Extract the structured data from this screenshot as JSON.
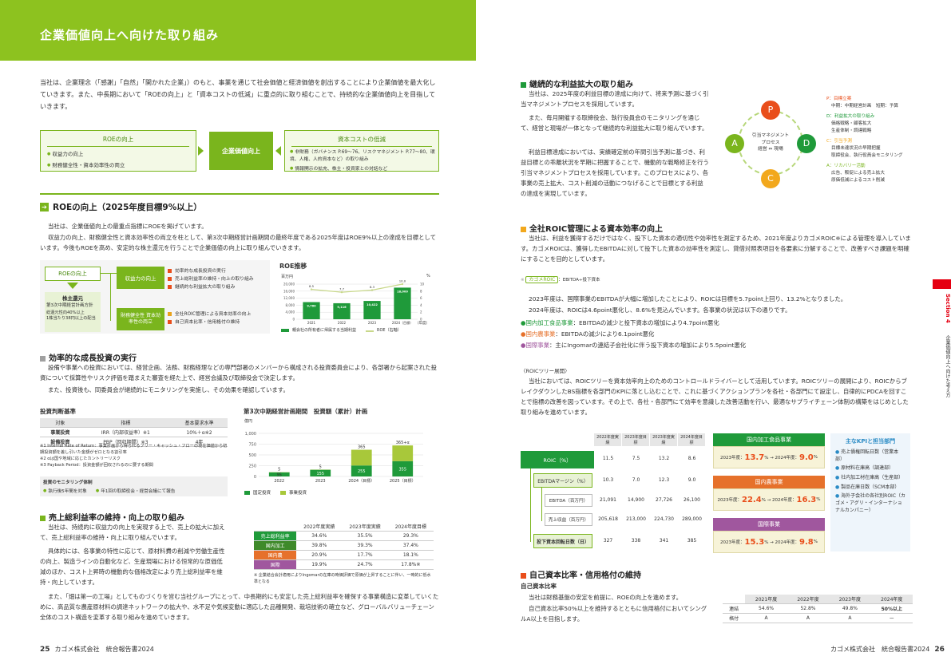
{
  "banner_title": "企業価値向上へ向けた取り組み",
  "intro": "当社は、企業理念（「感謝」「自然」「開かれた企業」）のもと、事業を通じて社会価値と経済価値を創出することにより企業価値を最大化していきます。また、中長期において「ROEの向上」と「資本コストの低減」に重点的に取り組むことで、持続的な企業価値向上を目指していきます。",
  "flow": {
    "roe_title": "ROEの向上",
    "roe_items": [
      "収益力の向上",
      "財務健全性・資本効率性の両立"
    ],
    "center": "企業価値向上",
    "cost_title": "資本コストの低減",
    "cost_items": [
      "非財務（ガバナンス P.69〜76、リスクマネジメント P.77〜80、環境、人権、人的資本など）の取り組み",
      "情報開示の拡充、株主・投資家との対話など"
    ]
  },
  "roe_section": {
    "title": "ROEの向上（2025年度目標9%以上）",
    "p1": "当社は、企業価値向上の最重点指標にROEを掲げています。",
    "p2": "収益力の向上、財務健全性と資本効率性の両立を柱として、第3次中期経営計画期間の最終年度である2025年度はROE9%以上の達成を目標としています。今後もROEを高め、安定的な株主還元を行うことで企業価値の向上に取り組んでいきます。"
  },
  "roe_tree": {
    "root": "ROEの向上",
    "b1": "収益力の向上",
    "b1_items": [
      "効率的な成長投資の実行",
      "売上総利益率の維持・向上の取り組み",
      "継続的な利益拡大の取り組み"
    ],
    "b2": "財務健全性 資本効率性の両立",
    "b2_items": [
      "全社ROIC管理による資本効率の向上",
      "自己資本比率・信用格付の維持"
    ],
    "ret_title": "株主還元",
    "ret_sub": "第3次中期経営計画方針",
    "ret_items": [
      "総還元性向40%以上",
      "1株当たり38円以上の配当"
    ]
  },
  "roe_chart": {
    "title": "ROE推移",
    "unit_left": "百万円",
    "unit_right": "%",
    "legend1": "親会社の所有者に帰属する当期利益",
    "legend2": "ROE（右軸）",
    "note": "（年度）"
  },
  "growth": {
    "title": "効率的な成長投資の実行",
    "p1": "設備や事業への投資においては、経営企画、法務、財務経理などの専門部署のメンバーから構成される投資委員会により、各部署から起案された投資について採算性やリスク評価を踏まえた審査を経た上で、経営会議及び取締役会で決定します。",
    "p2": "また、投資後も、同委員会が継続的にモニタリングを実施し、その効果を確認しています。"
  },
  "criteria": {
    "title": "投資判断基準",
    "headers": [
      "対象",
      "指標",
      "基本要求水準"
    ],
    "rows": [
      [
        "事業投資",
        "IRR（内部収益率）※1",
        "10%＋α※2"
      ],
      [
        "設備投資",
        "PBP（回収期間）※3",
        "4年"
      ]
    ],
    "notes": [
      "※1 Internal Rate of Return：事業計画から得られるフリー・キャッシュ・フローの現在価値から初期投資額を差し引いた金額がゼロとなる割引率",
      "※2 αは国や地域に応じたカントリーリスク",
      "※3 Payback Period：投資金額が回収されるのに要する期間"
    ],
    "monitor_title": "投資のモニタリング体制",
    "monitor_items": [
      "執行後5年間を対象",
      "年1回の取締役会・経営会議にて報告"
    ]
  },
  "inv_chart": {
    "title": "第3次中期経営計画期間　投資額（累計）計画",
    "unit": "億円",
    "legend1": "国定投資",
    "legend2": "事業投資"
  },
  "margin": {
    "title": "売上総利益率の維持・向上の取り組み",
    "p1": "当社は、持続的に収益力の向上を実現する上で、売上の拡大に加えて、売上総利益率の維持・向上に取り組んでいます。",
    "p2": "具体的には、各事業の特性に応じて、原材料費の削減や労働生産性の向上、製造ラインの自動化など、生産現場における恒常的な原価低減のほか、コスト上昇時の機動的な価格改定により売上総利益率を維持・向上しています。",
    "p3": "また、「畑は第一の工場」としてものづくりを営む当社グループにとって、中長期的にも安定した売上総利益率を確保する事業構造に変革していくために、高品質な農産原材料の調達ネットワークの拡大や、水不足や気候変動に適応した品種開発、栽培技術の確立など、グローバルバリューチェーン全体のコスト構造を変革する取り組みを進めていきます。",
    "headers": [
      "",
      "2022年度実績",
      "2023年度実績",
      "2024年度目標"
    ],
    "rows": [
      [
        "売上総利益率",
        "34.6%",
        "35.5%",
        "29.3%"
      ],
      [
        "国内加工",
        "39.8%",
        "39.3%",
        "37.4%"
      ],
      [
        "国内農",
        "20.9%",
        "17.7%",
        "18.1%"
      ],
      [
        "国際",
        "19.9%",
        "24.7%",
        "17.8%※"
      ]
    ],
    "note": "※ 企業結合会計適用によりIngomarの在庫の時価評価で原価が上昇することに伴い、一時的に低水準となる"
  },
  "footer_left": {
    "page": "25",
    "text": "カゴメ株式会社　統合報告書2024"
  },
  "footer_right": {
    "page": "26",
    "text": "カゴメ株式会社　統合報告書2024"
  },
  "profit": {
    "title": "継続的な利益拡大の取り組み",
    "p1": "当社は、2025年度の利益目標の達成に向けて、将来予測に基づく引当マネジメントプロセスを採用しています。",
    "p2": "また、毎月開催する取締役会、執行役員会のモニタリングを通じて、経営と現場が一体となって継続的な利益拡大に取り組んでいます。",
    "p3": "利益目標達成においては、実績確定前の年間引当予測に基づき、利益目標との乖離状況を早期に把握することで、機動的な戦略修正を行う引当マネジメントプロセスを採用しています。このプロセスにより、各事業の売上拡大、コスト削減の活動につなげることで目標とする利益の達成を実現しています。"
  },
  "pdca": {
    "center1": "引当マネジメント",
    "center2": "プロセス",
    "center3": "経営 ⇔ 現場",
    "P": "P",
    "D": "D",
    "C": "C",
    "A": "A",
    "p_title": "P：目標立案",
    "p_sub": "中期：中期経営計画　短期：予算",
    "d_title": "D：利益拡大の取り組み",
    "d_subs": [
      "価格戦略・顧客拡大",
      "生産体制・調達戦略"
    ],
    "c_title": "C：引当予測",
    "c_subs": [
      "目標未達状況の早期把握",
      "取締役会、執行役員会モニタリング"
    ],
    "a_title": "A：リカバリー活動",
    "a_subs": [
      "広告、販促による売上拡大",
      "原価低減によるコスト削減"
    ]
  },
  "roic": {
    "title": "全社ROIC管理による資本効率の向上",
    "p1": "当社は、利益を獲得するだけではなく、投下した資本の適切性や効率性を測定するため、2021年度よりカゴメROIC※による管理を導入しています。カゴメROICは、獲得したEBITDAに対して投下した資本の効率性を測定し、貸借対照表項目を各要素に分解することで、改善すべき課題を明確にすることを目的としています。",
    "formula_pill": "カゴメROIC",
    "formula": "：EBITDA÷投下資本",
    "p2": "2023年度は、国際事業のEBITDAが大幅に増加したことにより、ROICは目標を5.7point上回り、13.2%となりました。",
    "p3": "2024年度は、ROICは4.6point悪化し、8.6%を見込んでいます。各事業の状況は以下の通りです。",
    "seg1_name": "国内加工食品事業",
    "seg1": "：EBITDAの減少と投下資本の増加により4.7point悪化",
    "seg2_name": "国内農事業",
    "seg2": "：EBITDAの減少により6.1point悪化",
    "seg3_name": "国際事業",
    "seg3": "：主にIngomarの連結子会社化に伴う投下資本の増加により5.5point悪化",
    "tree_title": "〈ROICツリー展開〉",
    "p4": "当社においては、ROICツリーを資本効率向上のためのコントロールドライバーとして活用しています。ROICツリーの展開により、ROICからブレイクダウンしたBS指標を各部門のKPIに落とし込むことで、これに基づくアクションプランを各社・各部門にて設定し、自律的にPDCAを回すことで指標の改善を図っています。その上で、各社・各部門にて効率を意識した改善活動を行い、最適なサプライチェーン体制の構築をはじめとした取り組みを進めています。"
  },
  "roic_table": {
    "headers": [
      "2022年度実績",
      "2023年度目標",
      "2023年度実績",
      "2024年度目標"
    ],
    "rows": [
      {
        "label": "ROIC（%）",
        "v": [
          "11.5",
          "7.5",
          "13.2",
          "8.6"
        ]
      },
      {
        "label": "EBITDAマージン（%）",
        "v": [
          "10.3",
          "7.0",
          "12.3",
          "9.0"
        ]
      },
      {
        "label": "EBITDA（百万円）",
        "v": [
          "21,091",
          "14,900",
          "27,726",
          "26,100"
        ]
      },
      {
        "label": "売上収益（百万円）",
        "v": [
          "205,618",
          "213,000",
          "224,730",
          "289,000"
        ]
      },
      {
        "label": "投下資本回転日数（日）",
        "v": [
          "327",
          "338",
          "341",
          "385"
        ]
      }
    ]
  },
  "seg_kpi": [
    {
      "name": "国内加工食品事業",
      "from": "13.7",
      "to": "9.0"
    },
    {
      "name": "国内農事業",
      "from": "22.4",
      "to": "16.3"
    },
    {
      "name": "国際事業",
      "from": "15.3",
      "to": "9.8"
    }
  ],
  "seg_kpi_labels": {
    "y23": "2023年度：",
    "arrow": "% → 2024年度：",
    "pct": "%"
  },
  "kpi": {
    "title": "主なKPIと担当部門",
    "items": [
      "売上債権回転日数（営業本部）",
      "原材料在庫高（調達部）",
      "社内加工材在庫高（生産部）",
      "製品在庫日数（SCM本部）",
      "海外子会社の各社別ROIC（カゴメ・アグリ・インターナショナルカンパニー）"
    ]
  },
  "equity": {
    "title": "自己資本比率・信用格付の維持",
    "sub": "自己資本比率",
    "p1": "当社は財務基盤の安定を前提に、ROEの向上を進めます。",
    "p2": "自己資本比率50%以上を維持するとともに信用格付においてシングルA以上を目指します。",
    "headers": [
      "",
      "2021年度",
      "2022年度",
      "2023年度",
      "2024年度"
    ],
    "rows": [
      [
        "連結",
        "54.6%",
        "52.8%",
        "49.8%",
        "50%以上"
      ],
      [
        "格付",
        "A",
        "A",
        "A",
        "ー"
      ]
    ]
  },
  "side_tab": {
    "section": "Section 4",
    "text": "企業価値向上へ向けた考え方"
  },
  "chart_data": [
    {
      "type": "bar",
      "title": "ROE推移",
      "categories": [
        "2021",
        "2022",
        "2023",
        "2024（目標）"
      ],
      "series": [
        {
          "name": "親会社の所有者に帰属する当期利益",
          "values": [
            9760,
            9116,
            10422,
            18000
          ]
        },
        {
          "name": "ROE（右軸）",
          "type": "line",
          "values": [
            8.5,
            7.7,
            8.3,
            10.0
          ]
        }
      ],
      "ylim": [
        0,
        20000
      ],
      "ylim_right": [
        0,
        10
      ],
      "yticks": [
        0,
        4000,
        8000,
        12000,
        16000,
        20000
      ],
      "yticks_right": [
        0,
        2,
        4,
        6,
        8,
        10
      ],
      "value_labels": [
        "9,760",
        "9,116",
        "10,422",
        "18,000"
      ]
    },
    {
      "type": "bar",
      "title": "第3次中期経営計画期間　投資額（累計）計画",
      "categories": [
        "2022",
        "2023",
        "2024（目標）",
        "2025（目標）"
      ],
      "series": [
        {
          "name": "国定投資",
          "values": [
            95,
            155,
            255,
            355
          ]
        },
        {
          "name": "事業投資",
          "values": [
            5,
            5,
            365,
            365
          ]
        }
      ],
      "ylim": [
        0,
        1000
      ],
      "yticks": [
        0,
        250,
        500,
        750,
        1000
      ],
      "total_labels": [
        "5",
        "5",
        "365",
        "365+α"
      ]
    }
  ]
}
